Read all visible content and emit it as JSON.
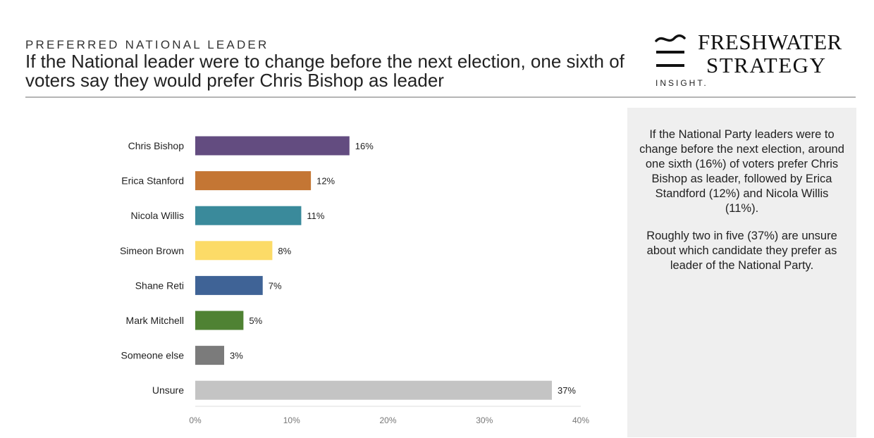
{
  "header": {
    "eyebrow": "PREFERRED NATIONAL LEADER",
    "headline": "If the National leader were to change before the next election, one sixth of voters say they would prefer Chris Bishop as leader"
  },
  "brand": {
    "line1": "FRESHWATER",
    "line2": "STRATEGY",
    "sub": "INSIGHT.",
    "mark_icon": "wave-and-bars-logo-icon"
  },
  "chart_data": {
    "type": "bar",
    "orientation": "horizontal",
    "categories": [
      "Chris Bishop",
      "Erica Stanford",
      "Nicola Willis",
      "Simeon Brown",
      "Shane Reti",
      "Mark Mitchell",
      "Someone else",
      "Unsure"
    ],
    "values": [
      16,
      12,
      11,
      8,
      7,
      5,
      3,
      37
    ],
    "value_labels": [
      "16%",
      "12%",
      "11%",
      "8%",
      "7%",
      "5%",
      "3%",
      "37%"
    ],
    "colors": [
      "#634c80",
      "#c47634",
      "#3a8a9b",
      "#fcdb67",
      "#3f6396",
      "#4f8233",
      "#7b7b7b",
      "#c4c4c4"
    ],
    "xlim": [
      0,
      40
    ],
    "xticks": [
      0,
      10,
      20,
      30,
      40
    ],
    "xtick_labels": [
      "0%",
      "10%",
      "20%",
      "30%",
      "40%"
    ],
    "grid": false
  },
  "panel": {
    "paragraph1": "If the National Party leaders were to change before the next election, around one sixth (16%) of voters prefer Chris Bishop as leader, followed by Erica Standford (12%) and Nicola Willis (11%).",
    "paragraph2": "Roughly two in five (37%) are unsure about which candidate they prefer as leader of the National Party."
  }
}
